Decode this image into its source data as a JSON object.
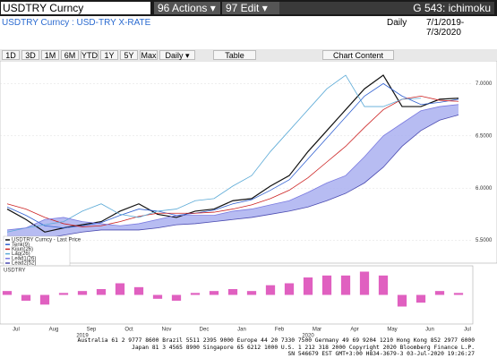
{
  "header": {
    "security": "USDTRY Curncy",
    "actions": "96 Actions ▾",
    "edit": "97 Edit ▾",
    "page": "G 543: ichimoku"
  },
  "subheader": {
    "name": "USDTRY Curncy : USD-TRY X-RATE",
    "frequency": "Daily",
    "range": "7/1/2019-7/3/2020"
  },
  "toolbar": {
    "buttons": [
      "1D",
      "3D",
      "1M",
      "6M",
      "YTD",
      "1Y",
      "5Y",
      "Max",
      "Daily ▾"
    ],
    "table": "Table",
    "chart_content": "Chart Content"
  },
  "chart_data": [
    {
      "type": "line",
      "categories": [
        "Jul",
        null,
        "Aug",
        null,
        "Sep",
        null,
        "Oct",
        null,
        "Nov",
        null,
        "Dec",
        null,
        "Jan",
        null,
        "Feb",
        null,
        "Mar",
        null,
        "Apr",
        null,
        "May",
        null,
        "Jun",
        null,
        "Jul"
      ],
      "years": [
        "2019",
        "2020"
      ],
      "ylim": [
        5.3,
        7.2
      ],
      "yticks": [
        {
          "value": 5.5,
          "label": "5.5000"
        },
        {
          "value": 6.0,
          "label": "6.0000"
        },
        {
          "value": 6.5,
          "label": "6.5000"
        },
        {
          "value": 7.0,
          "label": "7.0000"
        }
      ],
      "series": [
        {
          "name": "USDTRY Curncy - Last Price",
          "color": "#111111",
          "values": [
            5.8,
            5.7,
            5.58,
            5.62,
            5.65,
            5.68,
            5.78,
            5.85,
            5.75,
            5.72,
            5.78,
            5.8,
            5.88,
            5.9,
            6.02,
            6.12,
            6.35,
            6.55,
            6.75,
            6.95,
            7.08,
            6.78,
            6.78,
            6.85,
            6.86
          ]
        },
        {
          "name": "Tenk(9)",
          "color": "#2f5fd0",
          "values": [
            5.82,
            5.74,
            5.64,
            5.62,
            5.64,
            5.67,
            5.74,
            5.8,
            5.78,
            5.74,
            5.76,
            5.79,
            5.85,
            5.89,
            5.98,
            6.08,
            6.28,
            6.48,
            6.68,
            6.88,
            7.0,
            6.88,
            6.8,
            6.82,
            6.85
          ]
        },
        {
          "name": "Kijun(26)",
          "color": "#cc2222",
          "values": [
            5.85,
            5.8,
            5.72,
            5.66,
            5.63,
            5.64,
            5.68,
            5.73,
            5.76,
            5.76,
            5.76,
            5.77,
            5.8,
            5.84,
            5.9,
            5.98,
            6.1,
            6.25,
            6.4,
            6.58,
            6.75,
            6.85,
            6.88,
            6.84,
            6.83
          ]
        },
        {
          "name": "Lag(26)",
          "color": "#5aa9d6",
          "values": [
            5.58,
            5.62,
            5.65,
            5.68,
            5.78,
            5.85,
            5.75,
            5.72,
            5.78,
            5.8,
            5.88,
            5.9,
            6.02,
            6.12,
            6.35,
            6.55,
            6.75,
            6.95,
            7.08,
            6.78,
            6.78,
            6.85,
            6.86,
            null,
            null
          ]
        },
        {
          "name": "Lead1(26)",
          "color": "#7a7ae0",
          "values": [
            5.6,
            5.62,
            5.7,
            5.72,
            5.68,
            5.66,
            5.64,
            5.66,
            5.7,
            5.74,
            5.74,
            5.74,
            5.78,
            5.8,
            5.84,
            5.88,
            5.96,
            6.05,
            6.12,
            6.3,
            6.5,
            6.62,
            6.74,
            6.78,
            6.8
          ]
        },
        {
          "name": "Lead2(52)",
          "color": "#4a4ab0",
          "values": [
            5.45,
            5.48,
            5.52,
            5.55,
            5.58,
            5.6,
            5.6,
            5.6,
            5.62,
            5.65,
            5.66,
            5.68,
            5.7,
            5.72,
            5.75,
            5.78,
            5.82,
            5.88,
            5.95,
            6.05,
            6.2,
            6.4,
            6.55,
            6.65,
            6.7
          ]
        }
      ],
      "cloud_color": "#aab0f0"
    },
    {
      "type": "bar",
      "title": "USDTRY",
      "color": "#e060c0",
      "ylim": [
        -0.15,
        0.15
      ],
      "values": [
        0.02,
        -0.03,
        -0.05,
        0.01,
        0.02,
        0.03,
        0.06,
        0.04,
        -0.02,
        -0.03,
        0.01,
        0.02,
        0.03,
        0.02,
        0.05,
        0.06,
        0.09,
        0.1,
        0.1,
        0.12,
        0.1,
        -0.06,
        -0.04,
        0.02,
        0.01
      ]
    }
  ],
  "footer": [
    "Australia 61 2 9777 8600 Brazil 5511 2395 9000 Europe 44 20 7330 7500 Germany 49 69 9204 1210 Hong Kong 852 2977 6000",
    "Japan 81 3 4565 8900 Singapore 65 6212 1000 U.S. 1 212 318 2000 Copyright 2020 Bloomberg Finance L.P.",
    "SN 546679 EST GMT+3:00 H834-3679-3 03-Jul-2020 19:26:27"
  ]
}
